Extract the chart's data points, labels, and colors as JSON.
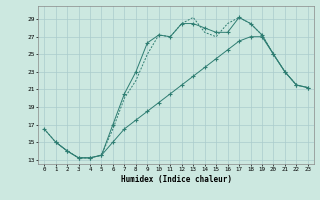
{
  "xlabel": "Humidex (Indice chaleur)",
  "bg_color": "#cce8e0",
  "grid_color": "#aacccc",
  "line_color": "#2e7d72",
  "xlim": [
    -0.5,
    23.5
  ],
  "ylim": [
    12.5,
    30.5
  ],
  "xticks": [
    0,
    1,
    2,
    3,
    4,
    5,
    6,
    7,
    8,
    9,
    10,
    11,
    12,
    13,
    14,
    15,
    16,
    17,
    18,
    19,
    20,
    21,
    22,
    23
  ],
  "yticks": [
    13,
    15,
    17,
    19,
    21,
    23,
    25,
    27,
    29
  ],
  "line1_x": [
    0,
    1,
    2,
    3,
    4,
    5,
    6,
    7,
    8,
    9,
    10,
    11,
    12,
    13,
    14,
    15,
    16,
    17,
    18,
    19,
    20,
    21,
    22,
    23
  ],
  "line1_y": [
    16.5,
    15.0,
    14.0,
    13.2,
    13.2,
    13.5,
    17.0,
    20.5,
    23.0,
    26.3,
    27.2,
    27.0,
    28.5,
    28.5,
    28.0,
    27.5,
    27.5,
    29.2,
    28.5,
    27.2,
    25.0,
    23.0,
    21.5,
    21.2
  ],
  "line2_x": [
    0,
    1,
    2,
    3,
    4,
    5,
    6,
    7,
    8,
    9,
    10,
    11,
    12,
    13,
    14,
    15,
    16,
    17,
    18,
    19,
    20,
    21,
    22,
    23
  ],
  "line2_y": [
    16.5,
    15.0,
    14.0,
    13.2,
    13.2,
    13.5,
    16.5,
    20.0,
    22.0,
    25.0,
    27.2,
    27.0,
    28.5,
    29.2,
    27.5,
    27.0,
    28.5,
    29.2,
    28.5,
    27.2,
    25.0,
    23.0,
    21.5,
    21.2
  ],
  "line3_x": [
    1,
    2,
    3,
    4,
    5,
    6,
    7,
    8,
    9,
    10,
    11,
    12,
    13,
    14,
    15,
    16,
    17,
    18,
    19,
    20,
    21,
    22,
    23
  ],
  "line3_y": [
    15.0,
    14.0,
    13.2,
    13.2,
    13.5,
    15.0,
    16.5,
    17.5,
    18.5,
    19.5,
    20.5,
    21.5,
    22.5,
    23.5,
    24.5,
    25.5,
    26.5,
    27.0,
    27.0,
    25.0,
    23.0,
    21.5,
    21.2
  ]
}
